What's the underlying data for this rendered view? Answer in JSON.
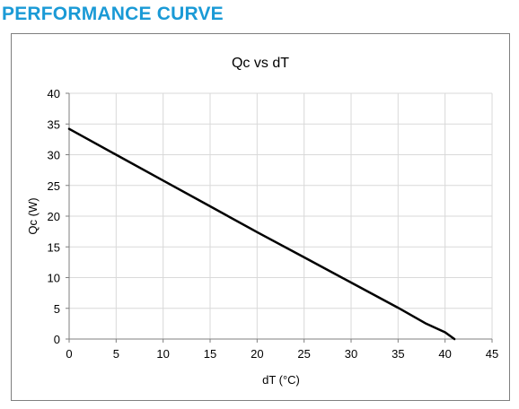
{
  "header": {
    "title": "PERFORMANCE CURVE"
  },
  "chart_data": {
    "type": "line",
    "title": "Qc vs dT",
    "xlabel": "dT (°C)",
    "ylabel": "Qc (W)",
    "xlim": [
      0,
      45
    ],
    "ylim": [
      0,
      40
    ],
    "xticks": [
      0,
      5,
      10,
      15,
      20,
      25,
      30,
      35,
      40,
      45
    ],
    "yticks": [
      0,
      5,
      10,
      15,
      20,
      25,
      30,
      35,
      40
    ],
    "grid": true,
    "series": [
      {
        "color": "#000000",
        "points": [
          [
            0,
            34.2
          ],
          [
            5,
            30.0
          ],
          [
            10,
            25.8
          ],
          [
            15,
            21.6
          ],
          [
            20,
            17.4
          ],
          [
            25,
            13.3
          ],
          [
            30,
            9.2
          ],
          [
            35,
            5.1
          ],
          [
            38,
            2.5
          ],
          [
            40,
            1.1
          ],
          [
            41,
            0
          ]
        ]
      }
    ]
  }
}
